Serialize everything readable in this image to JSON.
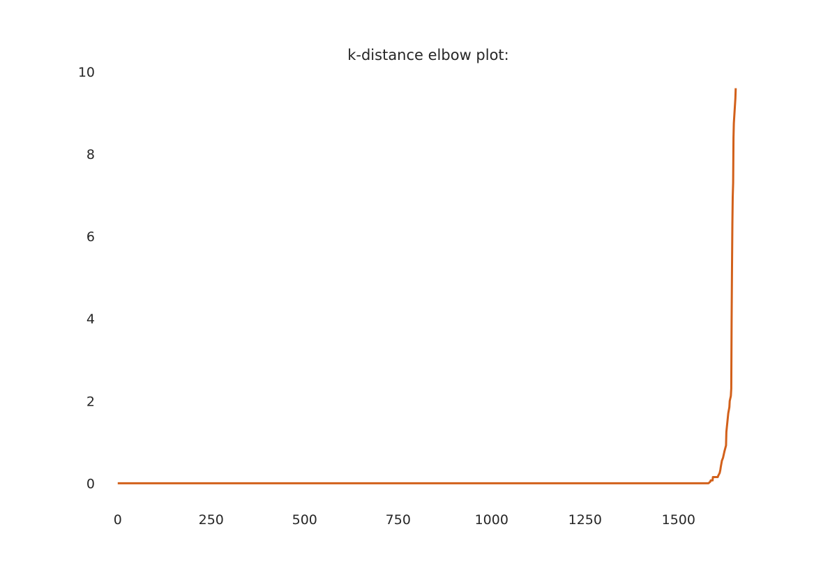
{
  "chart_data": {
    "type": "line",
    "title": "k-distance elbow plot:",
    "xlabel": "",
    "ylabel": "",
    "xlim": [
      -35,
      1700
    ],
    "ylim": [
      -0.4,
      10
    ],
    "x_ticks": [
      0,
      250,
      500,
      750,
      1000,
      1250,
      1500
    ],
    "y_ticks": [
      0,
      2,
      4,
      6,
      8,
      10
    ],
    "grid": false,
    "legend": "none",
    "colors": {
      "line": "#d2601a",
      "text": "#262626",
      "background": "#ffffff"
    },
    "series": [
      {
        "x": [
          0,
          1580,
          1585,
          1586,
          1591,
          1592,
          1605,
          1606,
          1610,
          1612,
          1613,
          1616,
          1619,
          1623,
          1625,
          1627,
          1628,
          1633,
          1636,
          1637,
          1640,
          1641,
          1642,
          1643,
          1644,
          1645,
          1646,
          1647,
          1648,
          1650,
          1652,
          1653
        ],
        "y": [
          0.0,
          0.0,
          0.04,
          0.07,
          0.07,
          0.15,
          0.15,
          0.18,
          0.25,
          0.33,
          0.4,
          0.55,
          0.62,
          0.78,
          0.85,
          0.92,
          1.25,
          1.7,
          1.85,
          2.0,
          2.12,
          2.3,
          3.95,
          5.1,
          6.3,
          6.95,
          7.3,
          8.4,
          8.75,
          9.05,
          9.35,
          9.6
        ]
      }
    ]
  }
}
